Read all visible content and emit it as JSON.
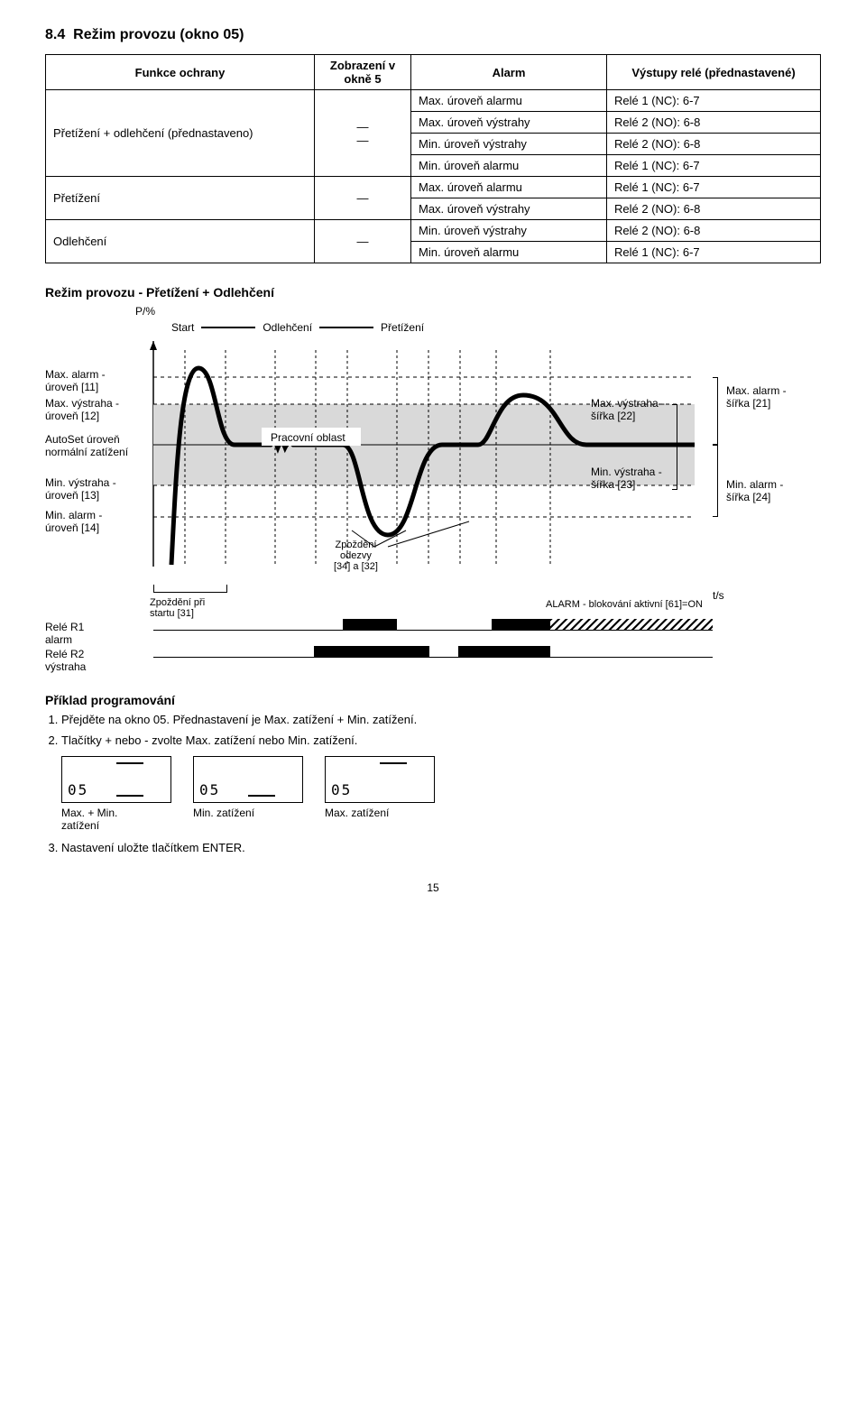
{
  "section": {
    "number": "8.4",
    "title": "Režim provozu (okno 05)"
  },
  "table": {
    "headers": [
      "Funkce ochrany",
      "Zobrazení v okně 5",
      "Alarm",
      "Výstupy relé (přednastavené)"
    ],
    "groups": [
      {
        "func": "Přetížení + odlehčení (přednastaveno)",
        "disp": "—\n—",
        "rows": [
          [
            "Max. úroveň alarmu",
            "Relé 1 (NC): 6-7"
          ],
          [
            "Max. úroveň výstrahy",
            "Relé 2 (NO): 6-8"
          ],
          [
            "Min. úroveň výstrahy",
            "Relé 2 (NO): 6-8"
          ],
          [
            "Min. úroveň alarmu",
            "Relé 1 (NC): 6-7"
          ]
        ]
      },
      {
        "func": "Přetížení",
        "disp": "—",
        "rows": [
          [
            "Max. úroveň alarmu",
            "Relé 1 (NC): 6-7"
          ],
          [
            "Max. úroveň výstrahy",
            "Relé 2 (NO): 6-8"
          ]
        ]
      },
      {
        "func": "Odlehčení",
        "disp": "—",
        "rows": [
          [
            "Min. úroveň výstrahy",
            "Relé 2 (NO): 6-8"
          ],
          [
            "Min. úroveň alarmu",
            "Relé 1 (NC): 6-7"
          ]
        ]
      }
    ]
  },
  "modeTitle": "Režim provozu - Přetížení + Odlehčení",
  "chart": {
    "yaxis": "P/%",
    "legend": {
      "start": "Start",
      "odl": "Odlehčení",
      "pret": "Přetížení"
    },
    "leftLabels": {
      "l1": "Max. alarm -\núroveň [11]",
      "l2": "Max. výstraha -\núroveň [12]",
      "l3": "AutoSet úroveň\nnormální zatížení",
      "l4": "Min. výstraha -\núroveň [13]",
      "l5": "Min. alarm -\núroveň [14]"
    },
    "workArea": "Pracovní oblast",
    "delay": "Zpoždění\nodezvy\n[34] a [32]",
    "rightInner": {
      "r1": "Max. výstraha -\nšířka [22]",
      "r2": "Min. výstraha -\nšířka [23]"
    },
    "rightOuter": {
      "r1": "Max. alarm -\nšířka [21]",
      "r2": "Min. alarm -\nšířka [24]"
    },
    "ts": "t/s",
    "startDelay": "Zpoždění při\nstartu [31]",
    "alarmBlock": "ALARM - blokování aktivní [61]=ON",
    "r1": "Relé R1\nalarm",
    "r2": "Relé R2\nvýstraha",
    "colors": {
      "grayFill": "#d9d9d9",
      "curve": "#000000"
    }
  },
  "example": {
    "heading": "Příklad programování",
    "step1": "Přejděte na okno 05. Přednastavení je Max. zatížení + Min. zatížení.",
    "step2": "Tlačítky + nebo - zvolte Max. zatížení nebo Min. zatížení.",
    "step3": "Nastavení uložte tlačítkem ENTER.",
    "lcdNum": "05",
    "cap1": "Max. + Min.\nzatížení",
    "cap2": "Min. zatížení",
    "cap3": "Max. zatížení"
  },
  "pagenum": "15"
}
